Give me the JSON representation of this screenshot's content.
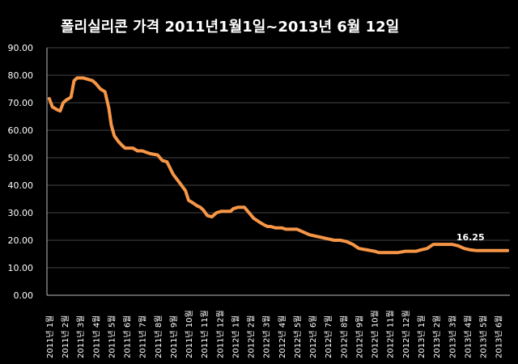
{
  "chart_data": {
    "type": "line",
    "title": "폴리실리콘  가격    2011년1월1일~2013년 6월 12일",
    "xlabel": "",
    "ylabel": "",
    "ylim": [
      0,
      90
    ],
    "yticks": [
      "90.00",
      "80.00",
      "70.00",
      "60.00",
      "50.00",
      "40.00",
      "30.00",
      "20.00",
      "10.00",
      "0.00"
    ],
    "ytick_values": [
      90,
      80,
      70,
      60,
      50,
      40,
      30,
      20,
      10,
      0
    ],
    "xticks": [
      "2011년 1월",
      "2011년 2월",
      "2011년 3월",
      "2011년 4월",
      "2011년 5월",
      "2011년 6월",
      "2011년 7월",
      "2011년 8월",
      "2011년 9월",
      "2011년 10월",
      "2011년 11월",
      "2011년 12월",
      "2012년 1월",
      "2012년 2월",
      "2012년 3월",
      "2012년 4월",
      "2012년 5월",
      "2012년 6월",
      "2012년 7월",
      "2012년 8월",
      "2012년 9월",
      "2012년 10월",
      "2012년 11월",
      "2012년 12월",
      "2013년 1월",
      "2013년 2월",
      "2013년 3월",
      "2013년 4월",
      "2013년 5월",
      "2013년 6월"
    ],
    "grid": true,
    "line_color": "#F79646",
    "series": [
      {
        "x": [
          0,
          0.2,
          0.5,
          0.7,
          0.9,
          1.1,
          1.4,
          1.6,
          1.8,
          1.95,
          2.2,
          2.5,
          2.8,
          3.0,
          3.3,
          3.6,
          3.85,
          4.0,
          4.2,
          4.45,
          4.7,
          4.9,
          5.1,
          5.4,
          5.7,
          6.0,
          6.5,
          7.0,
          7.3,
          7.6,
          8.0,
          8.4,
          8.8,
          9.0,
          9.15,
          9.3,
          9.55,
          9.75,
          9.95,
          10.2,
          10.5,
          10.8,
          11.1,
          11.3,
          11.5,
          11.7,
          11.9,
          12.2,
          12.6,
          12.9,
          13.2,
          13.6,
          13.9,
          14.1,
          14.3,
          14.6,
          15.0,
          15.3,
          15.7,
          16.0,
          16.4,
          16.8,
          17.2,
          17.6,
          18.0,
          18.4,
          18.8,
          19.2,
          19.6,
          20.0,
          20.5,
          21.0,
          21.3,
          21.7,
          22.1,
          22.5,
          23.0,
          23.3,
          23.7,
          24.0,
          24.4,
          24.8,
          25.2,
          25.6,
          26.0,
          26.4,
          26.8,
          27.2,
          27.6,
          28.0,
          28.4,
          28.8,
          29.2,
          29.6
        ],
        "y": [
          71.5,
          68.5,
          67.5,
          67.0,
          70.0,
          71.0,
          72.0,
          78.0,
          79.0,
          79.0,
          79.0,
          78.5,
          78.0,
          77.0,
          75.0,
          74.0,
          68.0,
          62.0,
          58.0,
          56.0,
          54.5,
          53.5,
          53.5,
          53.5,
          52.5,
          52.5,
          51.5,
          51.0,
          49.0,
          48.5,
          44.0,
          41.0,
          38.0,
          34.5,
          34.0,
          33.5,
          32.5,
          32.0,
          31.0,
          29.0,
          28.5,
          30.0,
          30.5,
          30.5,
          30.5,
          30.5,
          31.5,
          32.0,
          32.0,
          30.0,
          28.0,
          26.5,
          25.5,
          25.0,
          25.0,
          24.5,
          24.5,
          24.0,
          24.0,
          24.0,
          23.0,
          22.0,
          21.5,
          21.0,
          20.5,
          20.0,
          20.0,
          19.5,
          18.5,
          17.0,
          16.5,
          16.0,
          15.5,
          15.5,
          15.5,
          15.5,
          16.0,
          16.0,
          16.0,
          16.5,
          17.0,
          18.5,
          18.5,
          18.5,
          18.5,
          18.0,
          17.0,
          16.5,
          16.25,
          16.25,
          16.25,
          16.25,
          16.25,
          16.25
        ]
      }
    ],
    "annotation": {
      "text": "16.25",
      "x": 27.2,
      "y": 16.25
    }
  }
}
